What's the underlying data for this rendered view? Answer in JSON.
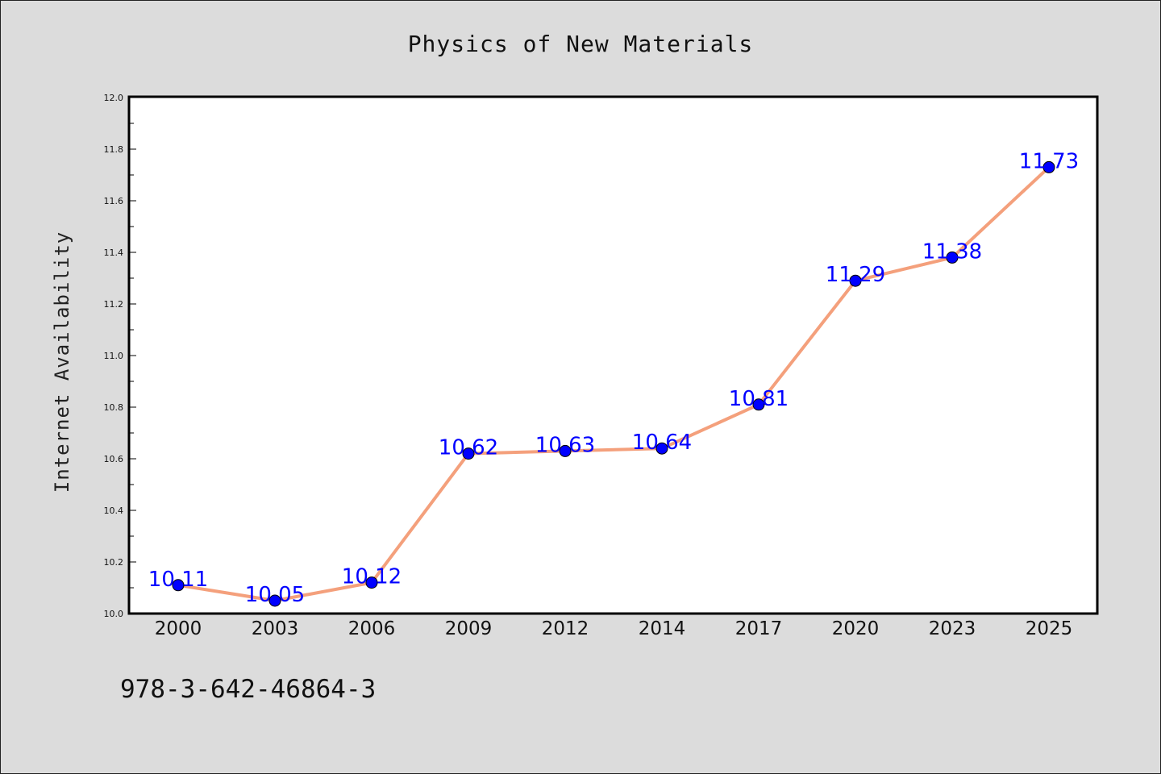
{
  "chart_data": {
    "type": "line",
    "title": "Physics of New Materials",
    "ylabel": "Internet Availability",
    "xlabel": "",
    "categories": [
      "2000",
      "2003",
      "2006",
      "2009",
      "2012",
      "2014",
      "2017",
      "2020",
      "2023",
      "2025"
    ],
    "series": [
      {
        "values": [
          10.11,
          10.05,
          10.12,
          10.62,
          10.63,
          10.64,
          10.81,
          11.29,
          11.38,
          11.73
        ],
        "data_labels": [
          "10.11",
          "10.05",
          "10.12",
          "10.62",
          "10.63",
          "10.64",
          "10.81",
          "11.29",
          "11.38",
          "11.73"
        ],
        "line_color": "#f4a07c",
        "marker_color": "#0000ff"
      }
    ],
    "ylim": [
      10.0,
      12.0
    ],
    "yticks": [
      10.0,
      10.2,
      10.4,
      10.6,
      10.8,
      11.0,
      11.2,
      11.4,
      11.6,
      11.8,
      12.0
    ],
    "ytick_labels": [
      "10.0",
      "10.2",
      "10.4",
      "10.6",
      "10.8",
      "11.0",
      "11.2",
      "11.4",
      "11.6",
      "11.8",
      "12.0"
    ],
    "grid": false,
    "legend": "none"
  },
  "footer": {
    "isbn": "978-3-642-46864-3"
  },
  "colors": {
    "background": "#dcdcdc",
    "plot_background": "#ffffff"
  }
}
